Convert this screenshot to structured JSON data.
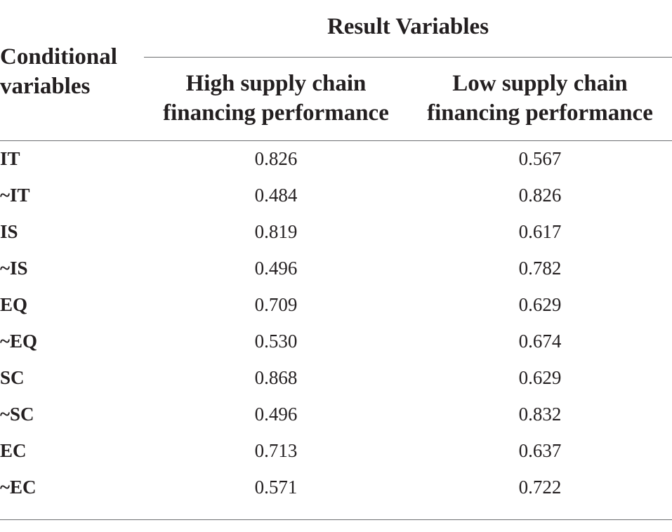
{
  "header": {
    "conditional_variables": "Conditional\nvariables",
    "result_variables": "Result Variables",
    "columns": [
      "High supply chain\nfinancing performance",
      "Low supply chain\nfinancing performance"
    ]
  },
  "rows": [
    {
      "name": "IT",
      "high": "0.826",
      "low": "0.567"
    },
    {
      "name": "~IT",
      "high": "0.484",
      "low": "0.826"
    },
    {
      "name": "IS",
      "high": "0.819",
      "low": "0.617"
    },
    {
      "name": "~IS",
      "high": "0.496",
      "low": "0.782"
    },
    {
      "name": "EQ",
      "high": "0.709",
      "low": "0.629"
    },
    {
      "name": "~EQ",
      "high": "0.530",
      "low": "0.674"
    },
    {
      "name": "SC",
      "high": "0.868",
      "low": "0.629"
    },
    {
      "name": "~SC",
      "high": "0.496",
      "low": "0.832"
    },
    {
      "name": "EC",
      "high": "0.713",
      "low": "0.637"
    },
    {
      "name": "~EC",
      "high": "0.571",
      "low": "0.722"
    }
  ]
}
